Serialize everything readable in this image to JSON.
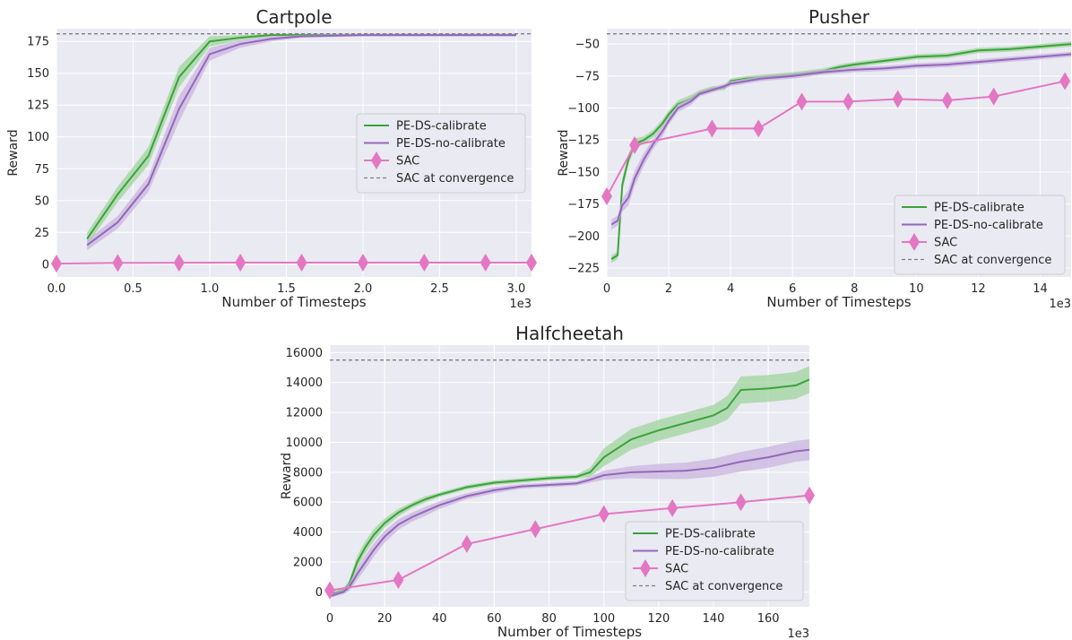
{
  "colors": {
    "background": "#eaeaf2",
    "grid": "#ffffff",
    "calibrate": "#3ba33b",
    "calibrate_band": "#9fd49c",
    "no_calibrate": "#9467bd",
    "no_calibrate_band": "#c9b4dd",
    "sac": "#e377c2",
    "convergence": "#808080",
    "text": "#262626"
  },
  "chart_data": [
    {
      "id": "cartpole",
      "type": "line",
      "title": "Cartpole",
      "xlabel": "Number of Timesteps",
      "ylabel": "Reward",
      "x_multiplier": "1e3",
      "xlim": [
        0,
        3.1
      ],
      "ylim": [
        -10,
        185
      ],
      "xticks": [
        0.0,
        0.5,
        1.0,
        1.5,
        2.0,
        2.5,
        3.0
      ],
      "xtick_labels": [
        "0.0",
        "0.5",
        "1.0",
        "1.5",
        "2.0",
        "2.5",
        "3.0"
      ],
      "yticks": [
        0,
        25,
        50,
        75,
        100,
        125,
        150,
        175
      ],
      "ytick_labels": [
        "0",
        "25",
        "50",
        "75",
        "100",
        "125",
        "150",
        "175"
      ],
      "legend": {
        "position": "center-right",
        "entries": [
          "PE-DS-calibrate",
          "PE-DS-no-calibrate",
          "SAC",
          "SAC at convergence"
        ]
      },
      "series": [
        {
          "name": "PE-DS-calibrate",
          "style": "calibrate",
          "x": [
            0.2,
            0.4,
            0.6,
            0.8,
            1.0,
            1.2,
            1.4,
            1.6,
            2.0,
            2.5,
            3.0
          ],
          "y": [
            20,
            55,
            85,
            147,
            175,
            178,
            180,
            180,
            180,
            180,
            180
          ],
          "band": [
            5,
            6,
            7,
            8,
            4,
            2,
            1,
            1,
            1,
            1,
            1
          ]
        },
        {
          "name": "PE-DS-no-calibrate",
          "style": "no_calibrate",
          "x": [
            0.2,
            0.4,
            0.6,
            0.8,
            1.0,
            1.2,
            1.4,
            1.6,
            2.0,
            2.5,
            3.0
          ],
          "y": [
            15,
            33,
            63,
            122,
            165,
            173,
            177,
            179,
            180,
            180,
            180
          ],
          "band": [
            4,
            5,
            6,
            10,
            5,
            3,
            2,
            1,
            1,
            1,
            1
          ]
        },
        {
          "name": "SAC",
          "style": "sac",
          "marker": "diamond",
          "x": [
            0,
            0.4,
            0.8,
            1.2,
            1.6,
            2.0,
            2.4,
            2.8,
            3.1
          ],
          "y": [
            0.5,
            1,
            1.2,
            1.3,
            1.3,
            1.3,
            1.3,
            1.3,
            1.3
          ]
        },
        {
          "name": "SAC at convergence",
          "style": "convergence",
          "dashed": true,
          "hline": 181
        }
      ]
    },
    {
      "id": "pusher",
      "type": "line",
      "title": "Pusher",
      "xlabel": "Number of Timesteps",
      "ylabel": "Reward",
      "x_multiplier": "1e3",
      "xlim": [
        0,
        15
      ],
      "ylim": [
        -232,
        -38
      ],
      "xticks": [
        0,
        2,
        4,
        6,
        8,
        10,
        12,
        14
      ],
      "xtick_labels": [
        "0",
        "2",
        "4",
        "6",
        "8",
        "10",
        "12",
        "14"
      ],
      "yticks": [
        -225,
        -200,
        -175,
        -150,
        -125,
        -100,
        -75,
        -50
      ],
      "ytick_labels": [
        "−225",
        "−200",
        "−175",
        "−150",
        "−125",
        "−100",
        "−75",
        "−50"
      ],
      "legend": {
        "position": "lower-right",
        "entries": [
          "PE-DS-calibrate",
          "PE-DS-no-calibrate",
          "SAC",
          "SAC at convergence"
        ]
      },
      "series": [
        {
          "name": "PE-DS-calibrate",
          "style": "calibrate",
          "x": [
            0.15,
            0.35,
            0.5,
            0.7,
            0.9,
            1.2,
            1.5,
            1.8,
            2.0,
            2.3,
            2.7,
            3.0,
            3.4,
            3.8,
            4.0,
            4.5,
            5,
            6,
            7,
            7.5,
            8,
            9,
            10,
            11,
            12,
            13,
            14,
            15
          ],
          "y": [
            -218,
            -215,
            -160,
            -140,
            -128,
            -125,
            -120,
            -112,
            -105,
            -97,
            -93,
            -88,
            -85,
            -84,
            -79,
            -77,
            -76,
            -74,
            -71,
            -68,
            -66,
            -63,
            -60,
            -59,
            -55,
            -54,
            -52,
            -50
          ],
          "band": [
            3,
            3,
            5,
            4,
            4,
            3,
            3,
            3,
            3,
            3,
            3,
            2,
            2,
            2,
            2,
            2,
            2,
            2,
            2,
            2,
            2,
            2,
            2,
            2,
            2,
            2,
            2,
            2
          ]
        },
        {
          "name": "PE-DS-no-calibrate",
          "style": "no_calibrate",
          "x": [
            0.15,
            0.35,
            0.5,
            0.7,
            0.9,
            1.2,
            1.5,
            1.8,
            2.0,
            2.3,
            2.7,
            3.0,
            3.4,
            3.8,
            4.0,
            4.5,
            5,
            6,
            7,
            8,
            9,
            10,
            11,
            12,
            13,
            14,
            15
          ],
          "y": [
            -191,
            -188,
            -176,
            -170,
            -155,
            -140,
            -128,
            -118,
            -110,
            -100,
            -95,
            -89,
            -86,
            -83,
            -81,
            -79,
            -77,
            -75,
            -72,
            -70,
            -69,
            -67,
            -66,
            -64,
            -62,
            -60,
            -58
          ],
          "band": [
            4,
            4,
            5,
            6,
            6,
            5,
            4,
            4,
            3,
            3,
            3,
            2,
            2,
            2,
            2,
            2,
            2,
            2,
            2,
            2,
            2,
            2,
            2,
            2,
            2,
            2,
            2
          ]
        },
        {
          "name": "SAC",
          "style": "sac",
          "marker": "diamond",
          "x": [
            0,
            0.9,
            3.4,
            4.9,
            6.3,
            7.8,
            9.4,
            11.0,
            12.5,
            14.8
          ],
          "y": [
            -169,
            -129,
            -116,
            -116,
            -95,
            -95,
            -93,
            -94,
            -91,
            -79
          ]
        },
        {
          "name": "SAC at convergence",
          "style": "convergence",
          "dashed": true,
          "hline": -42
        }
      ]
    },
    {
      "id": "halfcheetah",
      "type": "line",
      "title": "Halfcheetah",
      "xlabel": "Number of Timesteps",
      "ylabel": "Reward",
      "x_multiplier": "1e3",
      "xlim": [
        0,
        175
      ],
      "ylim": [
        -1000,
        16500
      ],
      "xticks": [
        0,
        20,
        40,
        60,
        80,
        100,
        120,
        140,
        160
      ],
      "xtick_labels": [
        "0",
        "20",
        "40",
        "60",
        "80",
        "100",
        "120",
        "140",
        "160"
      ],
      "yticks": [
        0,
        2000,
        4000,
        6000,
        8000,
        10000,
        12000,
        14000,
        16000
      ],
      "ytick_labels": [
        "0",
        "2000",
        "4000",
        "6000",
        "8000",
        "10000",
        "12000",
        "14000",
        "16000"
      ],
      "legend": {
        "position": "lower-right",
        "entries": [
          "PE-DS-calibrate",
          "PE-DS-no-calibrate",
          "SAC",
          "SAC at convergence"
        ]
      },
      "series": [
        {
          "name": "PE-DS-calibrate",
          "style": "calibrate",
          "x": [
            0,
            5,
            7,
            10,
            13,
            16,
            20,
            25,
            30,
            35,
            40,
            50,
            60,
            70,
            80,
            90,
            95,
            100,
            110,
            120,
            130,
            140,
            145,
            150,
            160,
            170,
            175
          ],
          "y": [
            -200,
            100,
            500,
            2000,
            3000,
            3800,
            4600,
            5300,
            5800,
            6200,
            6500,
            7000,
            7300,
            7450,
            7600,
            7700,
            8000,
            9000,
            10200,
            10800,
            11300,
            11800,
            12300,
            13500,
            13600,
            13800,
            14200
          ],
          "band": [
            100,
            150,
            250,
            400,
            400,
            400,
            300,
            250,
            200,
            200,
            150,
            150,
            150,
            150,
            150,
            150,
            300,
            600,
            700,
            700,
            700,
            700,
            800,
            900,
            900,
            900,
            900
          ]
        },
        {
          "name": "PE-DS-no-calibrate",
          "style": "no_calibrate",
          "x": [
            0,
            5,
            7,
            10,
            13,
            16,
            20,
            25,
            30,
            35,
            40,
            50,
            60,
            70,
            80,
            90,
            95,
            100,
            110,
            120,
            130,
            140,
            150,
            160,
            170,
            175
          ],
          "y": [
            -300,
            0,
            300,
            1200,
            2000,
            2800,
            3700,
            4500,
            5000,
            5400,
            5800,
            6400,
            6800,
            7050,
            7150,
            7250,
            7500,
            7800,
            8000,
            8050,
            8100,
            8300,
            8700,
            9000,
            9400,
            9500
          ],
          "band": [
            100,
            150,
            250,
            400,
            450,
            450,
            400,
            350,
            300,
            300,
            250,
            200,
            200,
            150,
            150,
            150,
            200,
            300,
            400,
            500,
            550,
            600,
            650,
            700,
            700,
            700
          ]
        },
        {
          "name": "SAC",
          "style": "sac",
          "marker": "diamond",
          "x": [
            0,
            25,
            50,
            75,
            100,
            125,
            150,
            175
          ],
          "y": [
            100,
            800,
            3200,
            4200,
            5200,
            5600,
            6000,
            6450
          ]
        },
        {
          "name": "SAC at convergence",
          "style": "convergence",
          "dashed": true,
          "hline": 15500
        }
      ]
    }
  ]
}
